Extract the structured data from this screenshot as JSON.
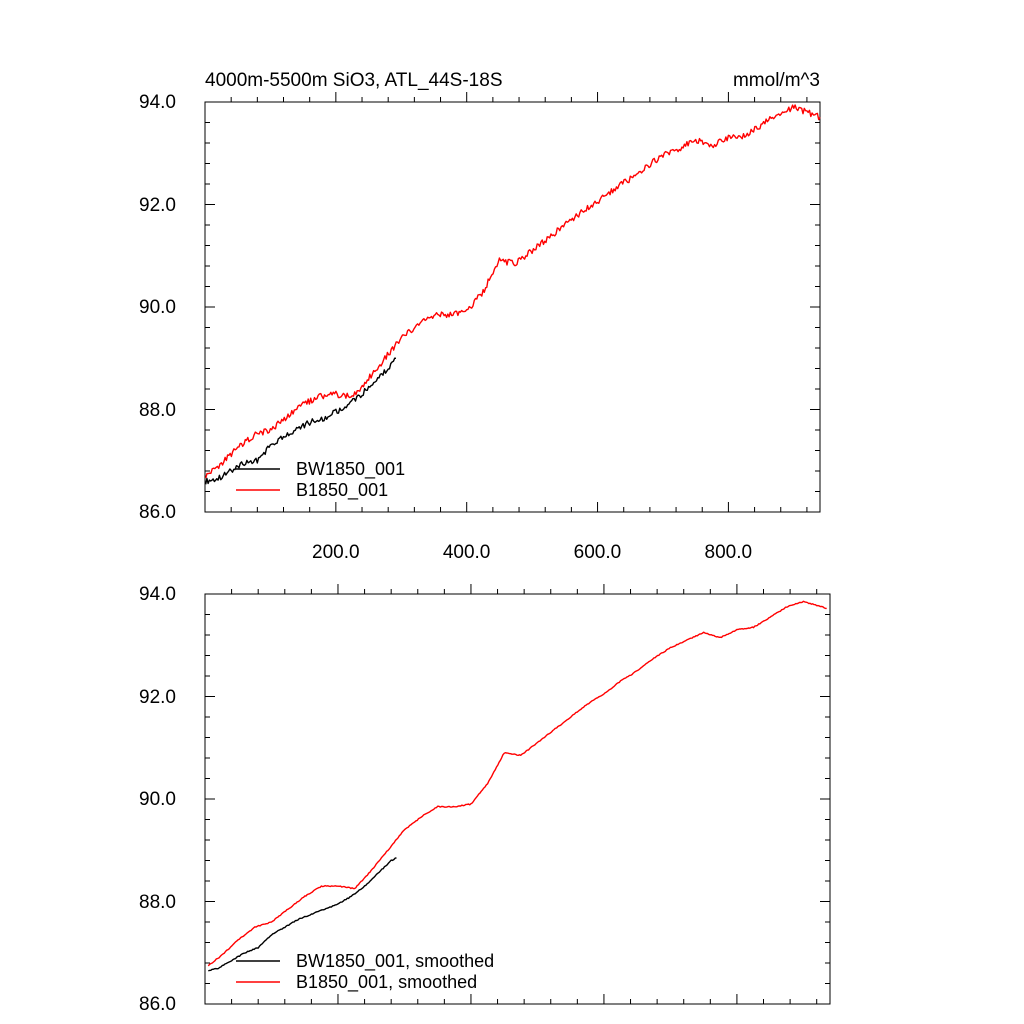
{
  "chart_data": [
    {
      "type": "line",
      "title": "4000m-5500m SiO3, ATL_44S-18S",
      "units": "mmol/m^3",
      "xlabel": "",
      "ylabel": "",
      "xlim": [
        0,
        940
      ],
      "ylim": [
        86.0,
        94.0
      ],
      "x_ticks": [
        "200.0",
        "400.0",
        "600.0",
        "800.0"
      ],
      "y_ticks": [
        "86.0",
        "88.0",
        "90.0",
        "92.0",
        "94.0"
      ],
      "legend_position": "bottom-left",
      "series": [
        {
          "name": "BW1850_001",
          "color": "#000000",
          "x": [
            1,
            20,
            40,
            60,
            80,
            100,
            120,
            140,
            160,
            180,
            200,
            220,
            240,
            260,
            280,
            292
          ],
          "y": [
            86.6,
            86.65,
            86.8,
            86.95,
            87.0,
            87.3,
            87.45,
            87.6,
            87.75,
            87.8,
            87.95,
            88.1,
            88.3,
            88.55,
            88.8,
            89.0
          ]
        },
        {
          "name": "B1850_001",
          "color": "#ff0000",
          "x": [
            1,
            25,
            50,
            75,
            100,
            125,
            150,
            175,
            200,
            225,
            250,
            275,
            300,
            325,
            350,
            375,
            400,
            425,
            450,
            475,
            500,
            525,
            550,
            575,
            600,
            625,
            650,
            675,
            700,
            725,
            750,
            775,
            800,
            825,
            850,
            875,
            900,
            920,
            940
          ],
          "y": [
            86.7,
            86.95,
            87.25,
            87.5,
            87.6,
            87.85,
            88.1,
            88.25,
            88.3,
            88.25,
            88.6,
            89.0,
            89.4,
            89.65,
            89.85,
            89.85,
            89.9,
            90.3,
            90.9,
            90.85,
            91.1,
            91.35,
            91.6,
            91.85,
            92.05,
            92.3,
            92.5,
            92.75,
            92.95,
            93.1,
            93.25,
            93.15,
            93.3,
            93.35,
            93.55,
            93.75,
            93.9,
            93.8,
            93.7
          ]
        }
      ]
    },
    {
      "type": "line",
      "title": "",
      "xlabel": "",
      "ylabel": "",
      "xlim": [
        0,
        940
      ],
      "ylim": [
        86.0,
        94.0
      ],
      "y_ticks": [
        "86.0",
        "88.0",
        "90.0",
        "92.0",
        "94.0"
      ],
      "legend_position": "bottom-left",
      "series": [
        {
          "name": "BW1850_001, smoothed",
          "color": "#000000",
          "x": [
            5,
            20,
            40,
            60,
            80,
            100,
            120,
            140,
            160,
            180,
            200,
            220,
            240,
            260,
            280,
            288
          ],
          "y": [
            86.65,
            86.7,
            86.85,
            87.0,
            87.1,
            87.35,
            87.5,
            87.65,
            87.75,
            87.85,
            87.95,
            88.1,
            88.3,
            88.55,
            88.8,
            88.85
          ]
        },
        {
          "name": "B1850_001, smoothed",
          "color": "#ff0000",
          "x": [
            5,
            25,
            50,
            75,
            100,
            125,
            150,
            175,
            200,
            225,
            250,
            275,
            300,
            325,
            350,
            375,
            400,
            425,
            450,
            475,
            500,
            525,
            550,
            575,
            600,
            625,
            650,
            675,
            700,
            725,
            750,
            775,
            800,
            825,
            850,
            875,
            900,
            920,
            935
          ],
          "y": [
            86.75,
            86.95,
            87.25,
            87.5,
            87.6,
            87.85,
            88.1,
            88.3,
            88.3,
            88.25,
            88.6,
            89.0,
            89.4,
            89.65,
            89.85,
            89.85,
            89.9,
            90.3,
            90.9,
            90.85,
            91.1,
            91.35,
            91.6,
            91.85,
            92.05,
            92.3,
            92.5,
            92.75,
            92.95,
            93.1,
            93.25,
            93.15,
            93.3,
            93.35,
            93.55,
            93.75,
            93.85,
            93.78,
            93.72
          ]
        }
      ]
    }
  ]
}
